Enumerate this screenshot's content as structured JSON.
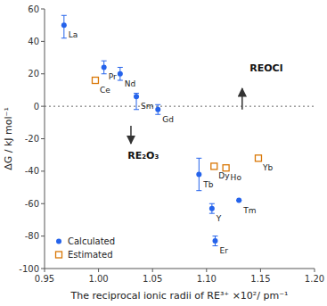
{
  "chart_data": {
    "type": "scatter",
    "xlabel": "The reciprocal ionic radii of RE³⁺ ×10²/ pm⁻¹",
    "ylabel": "ΔG / kJ mol⁻¹",
    "xlim": [
      0.95,
      1.2
    ],
    "ylim": [
      -100,
      60
    ],
    "xticks": [
      0.95,
      {
        "value": 1.0,
        "label": "1.00"
      },
      1.05,
      {
        "value": 1.1,
        "label": "1.10"
      },
      1.15,
      {
        "value": 1.2,
        "label": "1.20"
      }
    ],
    "yticks": [
      -100,
      -80,
      -60,
      -40,
      -20,
      0,
      20,
      40,
      60
    ],
    "grid": false,
    "legend": "lower left",
    "reference_lines": [
      0
    ],
    "series": [
      {
        "name": "Calculated",
        "marker": "dot",
        "labels": [
          "La",
          "Pr",
          "Nd",
          "Sm",
          "Gd",
          "Tb",
          "Y",
          "Er",
          "Tm"
        ],
        "x": [
          0.968,
          1.005,
          1.02,
          1.035,
          1.055,
          1.093,
          1.105,
          1.108,
          1.13
        ],
        "values": [
          50,
          24,
          20,
          6,
          -2,
          -42,
          -63,
          -83,
          -58
        ],
        "error_low": [
          8,
          4,
          4,
          8,
          3,
          10,
          3,
          3,
          0
        ],
        "error_high": [
          6,
          4,
          4,
          2,
          3,
          10,
          3,
          3,
          0
        ]
      },
      {
        "name": "Estimated",
        "marker": "square",
        "labels": [
          "Ce",
          "Dy",
          "Ho",
          "Yb"
        ],
        "x": [
          0.997,
          1.107,
          1.118,
          1.148
        ],
        "values": [
          16,
          -37,
          -38,
          -32
        ]
      }
    ],
    "annotations": [
      {
        "text": "REOCl",
        "x": 1.14,
        "y": 26,
        "arrow_from": [
          1.133,
          -2
        ],
        "arrow_to": [
          1.133,
          11
        ]
      },
      {
        "text": "RE₂O₃",
        "x": 1.027,
        "y": -28,
        "arrow_from": [
          1.03,
          -12
        ],
        "arrow_to": [
          1.03,
          -23
        ]
      }
    ]
  }
}
